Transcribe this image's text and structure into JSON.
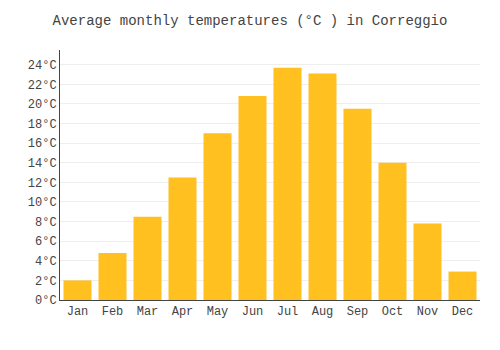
{
  "chart_data": {
    "type": "bar",
    "title": "Average monthly temperatures (°C ) in Correggio",
    "categories": [
      "Jan",
      "Feb",
      "Mar",
      "Apr",
      "May",
      "Jun",
      "Jul",
      "Aug",
      "Sep",
      "Oct",
      "Nov",
      "Dec"
    ],
    "values": [
      2.0,
      4.8,
      8.5,
      12.5,
      17.0,
      20.8,
      23.7,
      23.1,
      19.5,
      14.0,
      7.8,
      2.9
    ],
    "color": "#FFC020",
    "ylim": [
      0,
      25.5
    ],
    "yticks": [
      {
        "value": 0,
        "label": "0°C"
      },
      {
        "value": 2,
        "label": "2°C"
      },
      {
        "value": 4,
        "label": "4°C"
      },
      {
        "value": 6,
        "label": "6°C"
      },
      {
        "value": 8,
        "label": "8°C"
      },
      {
        "value": 10,
        "label": "10°C"
      },
      {
        "value": 12,
        "label": "12°C"
      },
      {
        "value": 14,
        "label": "14°C"
      },
      {
        "value": 16,
        "label": "16°C"
      },
      {
        "value": 18,
        "label": "18°C"
      },
      {
        "value": 20,
        "label": "20°C"
      },
      {
        "value": 22,
        "label": "22°C"
      },
      {
        "value": 24,
        "label": "24°C"
      }
    ],
    "grid": true
  }
}
